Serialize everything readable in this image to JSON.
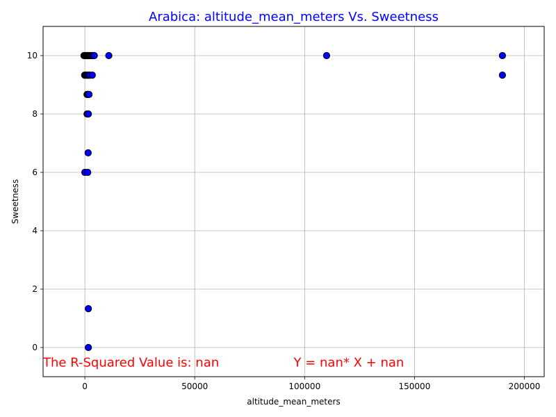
{
  "chart_data": {
    "type": "scatter",
    "title": "Arabica: altitude_mean_meters Vs. Sweetness",
    "title_color": "#0000ff",
    "xlabel": "altitude_mean_meters",
    "ylabel": "Sweetness",
    "xlim": [
      -19000,
      209000
    ],
    "ylim": [
      -1,
      11
    ],
    "xticks": [
      0,
      50000,
      100000,
      150000,
      200000
    ],
    "yticks": [
      0,
      2,
      4,
      6,
      8,
      10
    ],
    "grid": true,
    "marker_color": "#0000ff",
    "marker_edge_color": "#000000",
    "annotations": [
      {
        "text": "The R-Squared Value is: nan",
        "x": -19000,
        "y": -0.65,
        "color": "#ff0000"
      },
      {
        "text": "Y = nan* X + nan",
        "x": 95000,
        "y": -0.65,
        "color": "#ff0000"
      }
    ],
    "points": [
      [
        -400,
        10
      ],
      [
        -200,
        10
      ],
      [
        0,
        10
      ],
      [
        100,
        10
      ],
      [
        200,
        10
      ],
      [
        400,
        10
      ],
      [
        600,
        10
      ],
      [
        800,
        10
      ],
      [
        1000,
        10
      ],
      [
        1200,
        10
      ],
      [
        1400,
        10
      ],
      [
        1600,
        10
      ],
      [
        1800,
        10
      ],
      [
        2000,
        10
      ],
      [
        2200,
        10
      ],
      [
        2500,
        10
      ],
      [
        2800,
        10
      ],
      [
        3200,
        10
      ],
      [
        3600,
        10
      ],
      [
        4000,
        10
      ],
      [
        4300,
        10
      ],
      [
        10900,
        10
      ],
      [
        110000,
        10
      ],
      [
        190000,
        10
      ],
      [
        -100,
        9.33
      ],
      [
        300,
        9.33
      ],
      [
        700,
        9.33
      ],
      [
        1100,
        9.33
      ],
      [
        1500,
        9.33
      ],
      [
        1900,
        9.33
      ],
      [
        2300,
        9.33
      ],
      [
        3400,
        9.33
      ],
      [
        190000,
        9.33
      ],
      [
        1000,
        8.67
      ],
      [
        1300,
        8.67
      ],
      [
        1600,
        8.67
      ],
      [
        1900,
        8.67
      ],
      [
        1000,
        8
      ],
      [
        1300,
        8
      ],
      [
        1600,
        8
      ],
      [
        1500,
        6.67
      ],
      [
        0,
        6
      ],
      [
        1300,
        6
      ],
      [
        1600,
        1.33
      ],
      [
        1600,
        0
      ]
    ]
  }
}
